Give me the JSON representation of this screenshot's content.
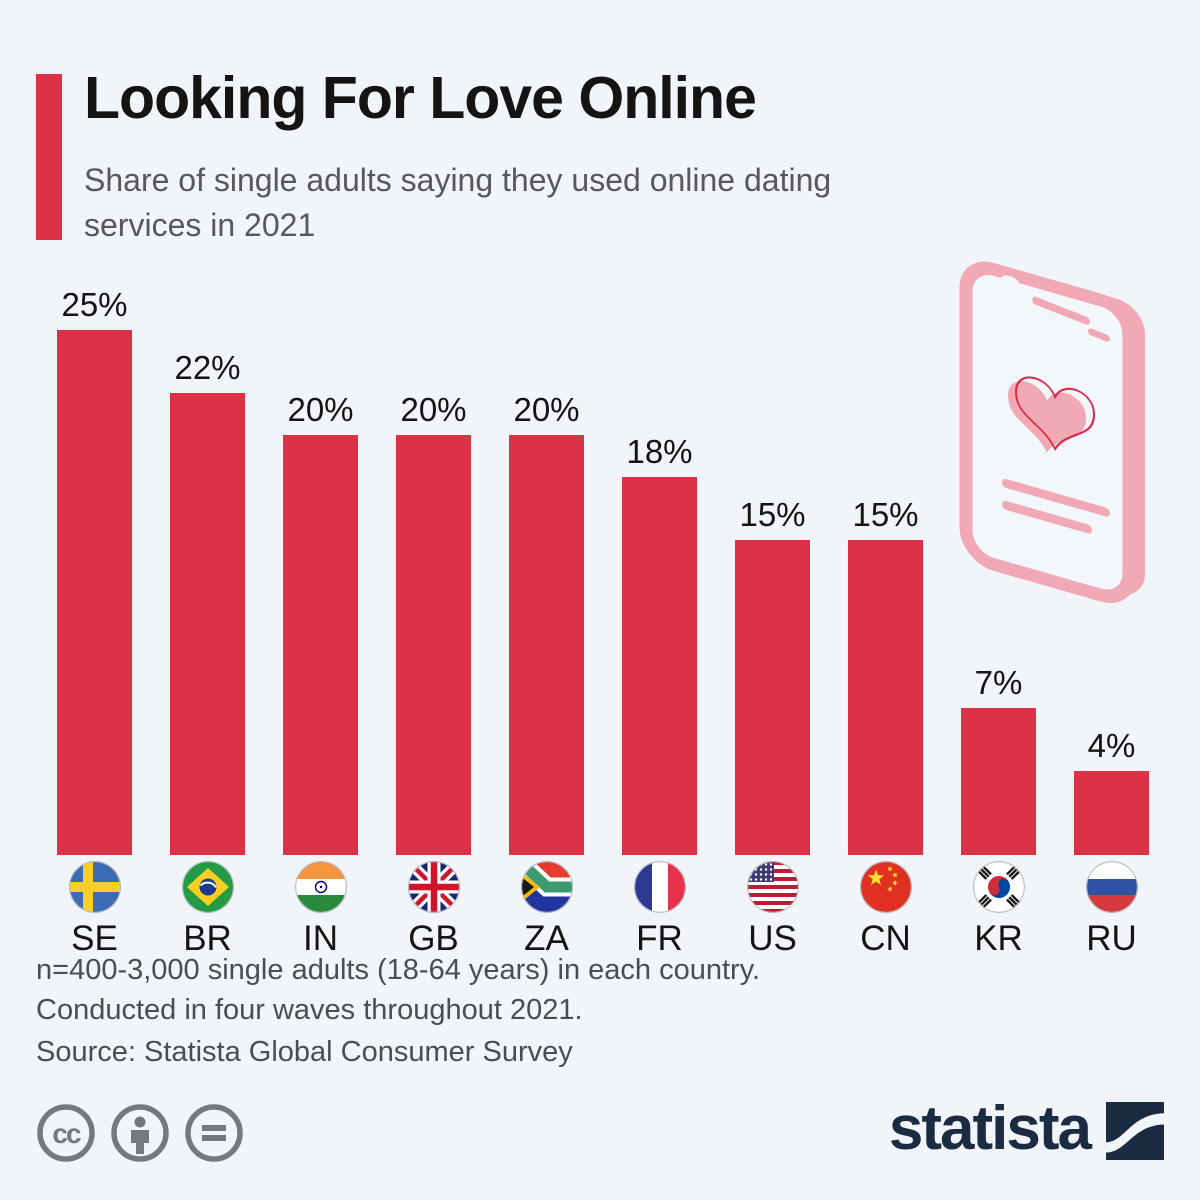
{
  "page": {
    "background_color": "#f1f4f8"
  },
  "header": {
    "title": "Looking For Love Online",
    "subtitle_line1": "Share of single adults saying they used online dating",
    "subtitle_line2": "services in 2021",
    "accent_color": "#dc3247"
  },
  "chart_data": {
    "type": "bar",
    "categories": [
      "SE",
      "BR",
      "IN",
      "GB",
      "ZA",
      "FR",
      "US",
      "CN",
      "KR",
      "RU"
    ],
    "values": [
      25,
      22,
      20,
      20,
      20,
      18,
      15,
      15,
      7,
      4
    ],
    "labels": [
      "25%",
      "22%",
      "20%",
      "20%",
      "20%",
      "18%",
      "15%",
      "15%",
      "7%",
      "4%"
    ],
    "flag_icons": [
      "flag-se-icon",
      "flag-br-icon",
      "flag-in-icon",
      "flag-gb-icon",
      "flag-za-icon",
      "flag-fr-icon",
      "flag-us-icon",
      "flag-cn-icon",
      "flag-kr-icon",
      "flag-ru-icon"
    ],
    "bar_color": "#dc3247",
    "ylim": [
      0,
      26
    ],
    "grid": false,
    "legend": false,
    "title": "Looking For Love Online",
    "xlabel": "",
    "ylabel": ""
  },
  "footer": {
    "note_line1": "n=400-3,000 single adults (18-64 years) in each country.",
    "note_line2": "Conducted in four waves throughout 2021.",
    "source": "Source: Statista Global Consumer Survey"
  },
  "branding": {
    "logo_text": "statista",
    "logo_color": "#1b2b42",
    "license_icons": [
      "cc-icon",
      "attribution-person-icon",
      "equals-icon"
    ],
    "license_icon_color": "#75797c"
  },
  "illustration": {
    "name": "smartphone-with-heart-illustration",
    "pink": "#f1a9b6",
    "heart_outline": "#d42e4c"
  }
}
